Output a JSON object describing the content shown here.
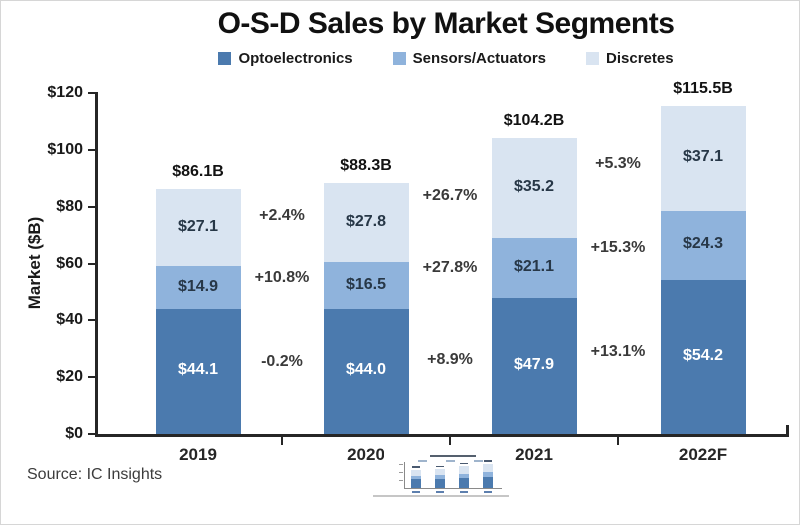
{
  "title": "O-S-D Sales by Market Segments",
  "source_note": "Source: IC Insights",
  "legend": [
    {
      "label": "Optoelectronics",
      "color": "#4B7AAE"
    },
    {
      "label": "Sensors/Actuators",
      "color": "#8FB3DC"
    },
    {
      "label": "Discretes",
      "color": "#D9E4F1"
    }
  ],
  "chart_data": {
    "type": "bar",
    "subtype": "stacked",
    "title": "O-S-D Sales by Market Segments",
    "ylabel": "Market ($B)",
    "ylim": [
      0,
      120
    ],
    "ytick_step": 20,
    "yticks": [
      {
        "value": 0,
        "label": "$0"
      },
      {
        "value": 20,
        "label": "$20"
      },
      {
        "value": 40,
        "label": "$40"
      },
      {
        "value": 60,
        "label": "$60"
      },
      {
        "value": 80,
        "label": "$80"
      },
      {
        "value": 100,
        "label": "$100"
      },
      {
        "value": 120,
        "label": "$120"
      }
    ],
    "grid": false,
    "legend_position": "top",
    "categories": [
      "2019",
      "2020",
      "2021",
      "2022F"
    ],
    "series": [
      {
        "name": "Optoelectronics",
        "color": "#4B7AAE",
        "label_color": "#FFFFFF",
        "values": [
          44.1,
          44.0,
          47.9,
          54.2
        ],
        "labels": [
          "$44.1",
          "$44.0",
          "$47.9",
          "$54.2"
        ]
      },
      {
        "name": "Sensors/Actuators",
        "color": "#8FB3DC",
        "label_color": "#273747",
        "values": [
          14.9,
          16.5,
          21.1,
          24.3
        ],
        "labels": [
          "$14.9",
          "$16.5",
          "$21.1",
          "$24.3"
        ]
      },
      {
        "name": "Discretes",
        "color": "#D9E4F1",
        "label_color": "#273747",
        "values": [
          27.1,
          27.8,
          35.2,
          37.1
        ],
        "labels": [
          "$27.1",
          "$27.8",
          "$35.2",
          "$37.1"
        ]
      }
    ],
    "totals": [
      "$86.1B",
      "$88.3B",
      "$104.2B",
      "$115.5B"
    ],
    "growth_annotations": [
      {
        "between": [
          "2019",
          "2020"
        ],
        "per_series": [
          "-0.2%",
          "+10.8%",
          "+2.4%"
        ]
      },
      {
        "between": [
          "2020",
          "2021"
        ],
        "per_series": [
          "+8.9%",
          "+27.8%",
          "+26.7%"
        ]
      },
      {
        "between": [
          "2021",
          "2022F"
        ],
        "per_series": [
          "+13.1%",
          "+15.3%",
          "+5.3%"
        ]
      }
    ]
  }
}
